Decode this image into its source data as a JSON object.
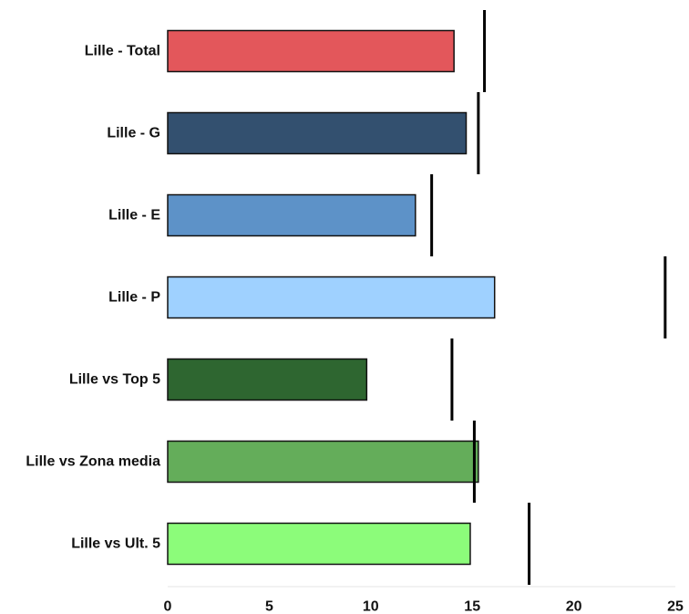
{
  "chart_data": {
    "type": "bar",
    "orientation": "horizontal",
    "categories": [
      "Lille - Total",
      "Lille - G",
      "Lille - E",
      "Lille - P",
      "Lille vs Top 5",
      "Lille vs Zona media",
      "Lille vs Ult. 5"
    ],
    "values": [
      14.1,
      14.7,
      12.2,
      16.1,
      9.8,
      15.3,
      14.9
    ],
    "reference_values": [
      15.6,
      15.3,
      13.0,
      24.5,
      14.0,
      15.1,
      17.8
    ],
    "colors": [
      "#e3575b",
      "#33506f",
      "#5d92c8",
      "#9fd1ff",
      "#2e6630",
      "#64ad5a",
      "#8cfc7a"
    ],
    "xlim": [
      0,
      25
    ],
    "xticks": [
      "0",
      "5",
      "10",
      "15",
      "20",
      "25"
    ],
    "title": "",
    "xlabel": "",
    "ylabel": "",
    "grid": false,
    "legend": "none"
  }
}
